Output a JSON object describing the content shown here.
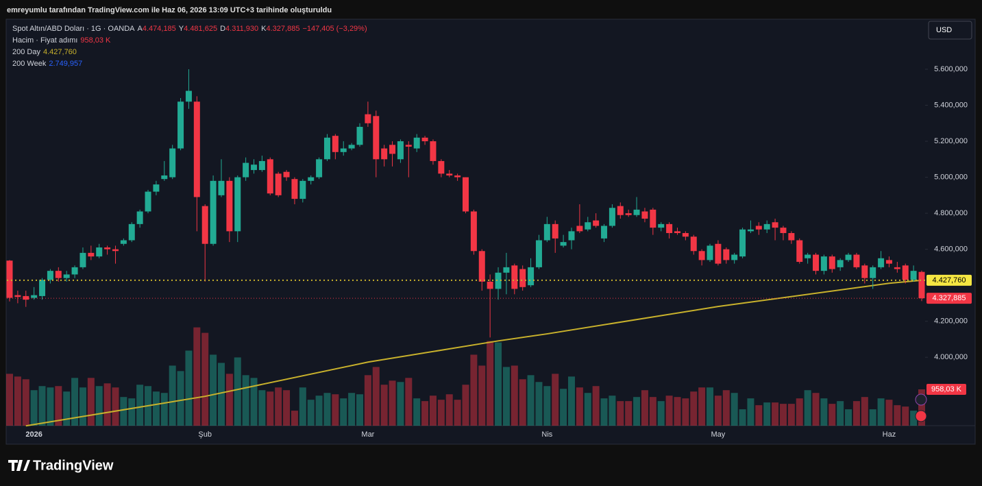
{
  "chart_data": {
    "type": "candlestick",
    "attribution": "emreyumlu tarafından TradingView.com ile Haz 06, 2026 13:09 UTC+3 tarihinde oluşturuldu",
    "title": "Spot Altın/ABD Doları · 1G · OANDA",
    "ohlc_legend": [
      {
        "key": "A",
        "value": 4474.185,
        "label": "4.474,185"
      },
      {
        "key": "Y",
        "value": 4481.625,
        "label": "4.481,625"
      },
      {
        "key": "D",
        "value": 4311.93,
        "label": "4.311,930"
      },
      {
        "key": "K",
        "value": 4327.885,
        "label": "4.327,885"
      }
    ],
    "change": "−147,405 (−3,29%)",
    "currency": "USD",
    "logo": "TradingView",
    "up_color": "#22ab94",
    "down_color": "#f23645",
    "ylim": [
      3620,
      5878
    ],
    "yticks": [
      {
        "value": 4000,
        "label": "4.000,000"
      },
      {
        "value": 4200,
        "label": "4.200,000"
      },
      {
        "value": 4600,
        "label": "4.600,000"
      },
      {
        "value": 4800,
        "label": "4.800,000"
      },
      {
        "value": 5000,
        "label": "5.000,000"
      },
      {
        "value": 5200,
        "label": "5.200,000"
      },
      {
        "value": 5400,
        "label": "5.400,000"
      },
      {
        "value": 5600,
        "label": "5.600,000"
      }
    ],
    "categories": [
      null,
      null,
      null,
      "2026",
      null,
      null,
      null,
      null,
      null,
      null,
      null,
      null,
      null,
      null,
      null,
      null,
      null,
      null,
      null,
      null,
      null,
      null,
      null,
      null,
      "Şub",
      null,
      null,
      null,
      null,
      null,
      null,
      null,
      null,
      null,
      null,
      null,
      null,
      null,
      null,
      null,
      null,
      null,
      null,
      null,
      "Mar",
      null,
      null,
      null,
      null,
      null,
      null,
      null,
      null,
      null,
      null,
      null,
      null,
      null,
      null,
      null,
      null,
      null,
      null,
      null,
      null,
      null,
      "Nis",
      null,
      null,
      null,
      null,
      null,
      null,
      null,
      null,
      null,
      null,
      null,
      null,
      null,
      null,
      null,
      null,
      null,
      null,
      null,
      null,
      "May",
      null,
      null,
      null,
      null,
      null,
      null,
      null,
      null,
      null,
      null,
      null,
      null,
      null,
      null,
      null,
      null,
      null,
      null,
      null,
      null,
      "Haz",
      null,
      null,
      null,
      null
    ],
    "candles": [
      [
        4537,
        4540,
        4310,
        4330
      ],
      [
        4345,
        4370,
        4300,
        4335
      ],
      [
        4340,
        4370,
        4280,
        4320
      ],
      [
        4330,
        4390,
        4320,
        4345
      ],
      [
        4340,
        4440,
        4320,
        4430
      ],
      [
        4430,
        4490,
        4410,
        4480
      ],
      [
        4480,
        4500,
        4420,
        4440
      ],
      [
        4440,
        4480,
        4420,
        4460
      ],
      [
        4460,
        4510,
        4440,
        4500
      ],
      [
        4500,
        4610,
        4490,
        4580
      ],
      [
        4580,
        4620,
        4540,
        4560
      ],
      [
        4560,
        4630,
        4550,
        4610
      ],
      [
        4610,
        4620,
        4570,
        4600
      ],
      [
        4600,
        4620,
        4520,
        4590
      ],
      [
        4630,
        4660,
        4620,
        4650
      ],
      [
        4650,
        4750,
        4640,
        4740
      ],
      [
        4740,
        4820,
        4720,
        4810
      ],
      [
        4810,
        4930,
        4800,
        4920
      ],
      [
        4920,
        4980,
        4900,
        4960
      ],
      [
        4990,
        5090,
        4980,
        5010
      ],
      [
        5000,
        5180,
        4990,
        5160
      ],
      [
        5160,
        5440,
        5150,
        5420
      ],
      [
        5420,
        5600,
        5380,
        5480
      ],
      [
        5420,
        5450,
        4700,
        4890
      ],
      [
        4840,
        4850,
        4420,
        4630
      ],
      [
        4630,
        5010,
        4620,
        4980
      ],
      [
        4900,
        5100,
        4890,
        4980
      ],
      [
        4980,
        5000,
        4640,
        4700
      ],
      [
        4700,
        5010,
        4640,
        5000
      ],
      [
        5000,
        5110,
        4980,
        5080
      ],
      [
        5040,
        5100,
        5020,
        5070
      ],
      [
        5040,
        5120,
        5030,
        5090
      ],
      [
        5100,
        5110,
        4900,
        4910
      ],
      [
        5020,
        5030,
        4890,
        4900
      ],
      [
        5030,
        5040,
        4980,
        5000
      ],
      [
        4990,
        5000,
        4850,
        4880
      ],
      [
        4880,
        4990,
        4860,
        4980
      ],
      [
        4980,
        5010,
        4960,
        5000
      ],
      [
        5000,
        5110,
        4990,
        5100
      ],
      [
        5100,
        5240,
        5090,
        5220
      ],
      [
        5230,
        5240,
        5100,
        5140
      ],
      [
        5140,
        5200,
        5120,
        5160
      ],
      [
        5160,
        5190,
        5150,
        5180
      ],
      [
        5180,
        5300,
        5170,
        5280
      ],
      [
        5350,
        5420,
        5280,
        5300
      ],
      [
        5340,
        5370,
        5000,
        5100
      ],
      [
        5160,
        5180,
        5060,
        5100
      ],
      [
        5180,
        5200,
        5060,
        5130
      ],
      [
        5100,
        5210,
        5080,
        5200
      ],
      [
        5180,
        5200,
        5000,
        5170
      ],
      [
        5160,
        5240,
        5140,
        5220
      ],
      [
        5220,
        5230,
        5180,
        5200
      ],
      [
        5200,
        5210,
        5070,
        5090
      ],
      [
        5090,
        5100,
        5000,
        5020
      ],
      [
        5020,
        5040,
        5000,
        5010
      ],
      [
        5010,
        5020,
        4980,
        5000
      ],
      [
        5000,
        5000,
        4800,
        4810
      ],
      [
        4810,
        4820,
        4570,
        4590
      ],
      [
        4590,
        4600,
        4370,
        4420
      ],
      [
        4420,
        4460,
        4110,
        4380
      ],
      [
        4380,
        4500,
        4320,
        4470
      ],
      [
        4470,
        4580,
        4350,
        4500
      ],
      [
        4510,
        4520,
        4350,
        4380
      ],
      [
        4490,
        4510,
        4370,
        4390
      ],
      [
        4400,
        4550,
        4390,
        4500
      ],
      [
        4500,
        4680,
        4490,
        4650
      ],
      [
        4650,
        4780,
        4640,
        4740
      ],
      [
        4740,
        4760,
        4580,
        4660
      ],
      [
        4620,
        4680,
        4610,
        4640
      ],
      [
        4650,
        4720,
        4600,
        4700
      ],
      [
        4730,
        4850,
        4690,
        4700
      ],
      [
        4710,
        4780,
        4700,
        4750
      ],
      [
        4760,
        4800,
        4720,
        4730
      ],
      [
        4660,
        4740,
        4640,
        4730
      ],
      [
        4730,
        4850,
        4720,
        4830
      ],
      [
        4840,
        4860,
        4770,
        4790
      ],
      [
        4800,
        4820,
        4780,
        4790
      ],
      [
        4790,
        4890,
        4780,
        4820
      ],
      [
        4810,
        4830,
        4750,
        4770
      ],
      [
        4820,
        4830,
        4680,
        4720
      ],
      [
        4720,
        4750,
        4700,
        4740
      ],
      [
        4740,
        4750,
        4660,
        4690
      ],
      [
        4700,
        4720,
        4680,
        4690
      ],
      [
        4690,
        4700,
        4650,
        4670
      ],
      [
        4670,
        4680,
        4570,
        4590
      ],
      [
        4590,
        4600,
        4510,
        4540
      ],
      [
        4540,
        4630,
        4530,
        4620
      ],
      [
        4630,
        4650,
        4510,
        4520
      ],
      [
        4600,
        4610,
        4520,
        4540
      ],
      [
        4540,
        4580,
        4520,
        4570
      ],
      [
        4560,
        4720,
        4550,
        4710
      ],
      [
        4700,
        4760,
        4690,
        4710
      ],
      [
        4730,
        4750,
        4680,
        4710
      ],
      [
        4710,
        4760,
        4690,
        4740
      ],
      [
        4750,
        4770,
        4650,
        4720
      ],
      [
        4720,
        4730,
        4650,
        4690
      ],
      [
        4690,
        4700,
        4630,
        4650
      ],
      [
        4650,
        4660,
        4520,
        4530
      ],
      [
        4550,
        4580,
        4520,
        4570
      ],
      [
        4570,
        4580,
        4460,
        4480
      ],
      [
        4480,
        4570,
        4460,
        4560
      ],
      [
        4560,
        4570,
        4470,
        4490
      ],
      [
        4500,
        4550,
        4480,
        4540
      ],
      [
        4540,
        4580,
        4530,
        4570
      ],
      [
        4570,
        4580,
        4490,
        4500
      ],
      [
        4510,
        4520,
        4410,
        4440
      ],
      [
        4440,
        4510,
        4380,
        4500
      ],
      [
        4500,
        4590,
        4490,
        4550
      ],
      [
        4540,
        4560,
        4500,
        4520
      ],
      [
        4500,
        4530,
        4470,
        4490
      ],
      [
        4510,
        4520,
        4410,
        4430
      ],
      [
        4430,
        4510,
        4420,
        4480
      ],
      [
        4474.185,
        4481.625,
        4311.93,
        4327.885
      ]
    ],
    "volume": {
      "name": "Hacim · Fiyat adımı",
      "values": [
        1368,
        1296,
        1224,
        936,
        1044,
        1008,
        1044,
        900,
        1260,
        1008,
        1260,
        1044,
        1116,
        1008,
        756,
        720,
        1080,
        1044,
        900,
        864,
        1584,
        1440,
        1980,
        2592,
        2448,
        1872,
        1656,
        1368,
        1800,
        1332,
        1260,
        936,
        900,
        1008,
        936,
        396,
        1008,
        684,
        792,
        864,
        828,
        720,
        864,
        828,
        1332,
        1548,
        1080,
        1188,
        1152,
        1260,
        720,
        648,
        792,
        684,
        828,
        684,
        1080,
        1872,
        1584,
        2232,
        2196,
        1548,
        1584,
        1224,
        1332,
        1152,
        1044,
        1368,
        972,
        1296,
        1008,
        864,
        1044,
        720,
        792,
        648,
        648,
        756,
        936,
        756,
        648,
        792,
        756,
        720,
        900,
        1008,
        1008,
        792,
        936,
        864,
        432,
        720,
        540,
        612,
        612,
        576,
        576,
        720,
        936,
        864,
        720,
        576,
        648,
        432,
        648,
        756,
        432,
        720,
        684,
        540,
        504,
        396,
        958.03
      ],
      "badge": {
        "value": 958.03,
        "label": "958,03 K"
      }
    },
    "series": [
      {
        "name": "200 Day",
        "color": "#c9b22c",
        "x": [
          2,
          24,
          44,
          60,
          66,
          87,
          108,
          112
        ],
        "values": [
          3619,
          3783,
          3973,
          4091,
          4130,
          4282,
          4411,
          4427.76
        ],
        "last": {
          "value": 4427.76,
          "label": "4.427,760"
        }
      },
      {
        "name": "200 Week",
        "color": "#2962ff",
        "last": {
          "value": 2749.957,
          "label": "2.749,957"
        }
      }
    ],
    "close_badge": {
      "value": 4327.885,
      "label": "4.327,885"
    }
  }
}
